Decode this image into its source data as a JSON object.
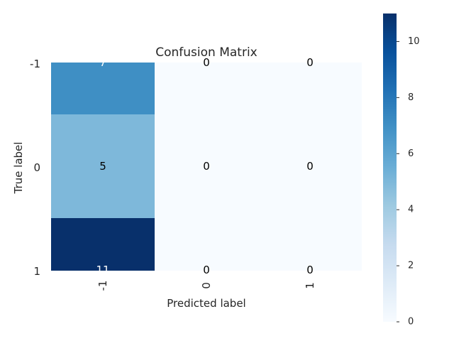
{
  "chart_data": {
    "type": "heatmap",
    "title": "Confusion Matrix",
    "xlabel": "Predicted label",
    "ylabel": "True label",
    "x_categories": [
      "-1",
      "0",
      "1"
    ],
    "y_categories": [
      "-1",
      "0",
      "1"
    ],
    "values": [
      [
        7,
        0,
        0
      ],
      [
        5,
        0,
        0
      ],
      [
        11,
        0,
        0
      ]
    ],
    "colormap": "Blues",
    "colorbar": {
      "min": 0,
      "max": 11,
      "ticks": [
        "0",
        "2",
        "4",
        "6",
        "8",
        "10"
      ]
    },
    "grid": false
  }
}
